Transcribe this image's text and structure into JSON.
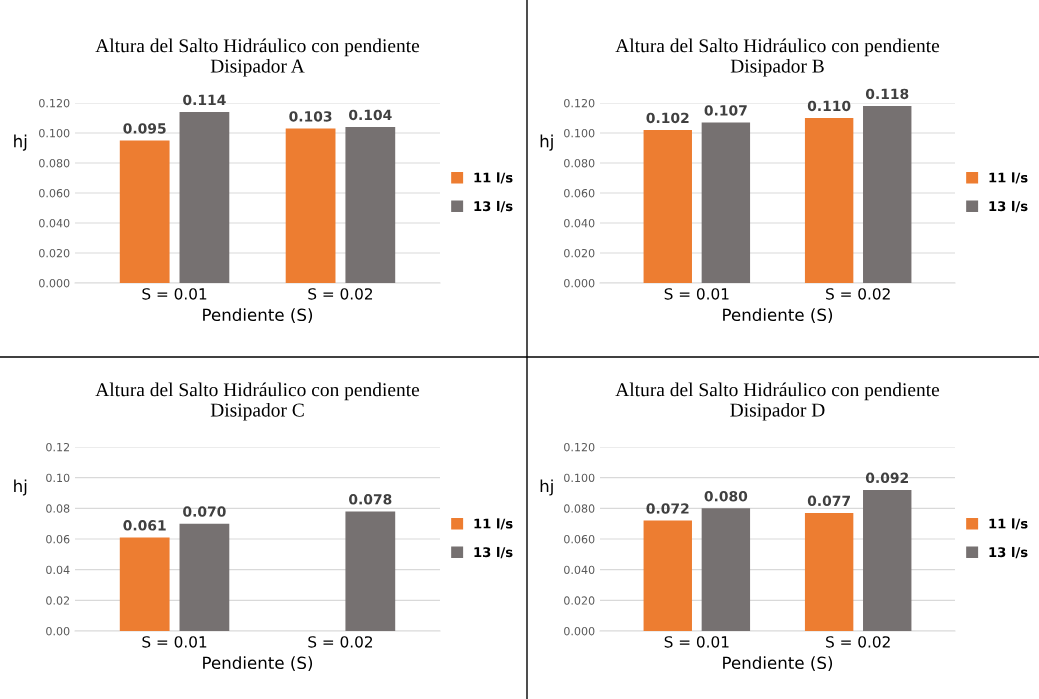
{
  "chart_data": [
    {
      "type": "bar",
      "title": "Altura del Salto Hidráulico con pendiente\nDisipador A",
      "xlabel": "Pendiente (S)",
      "ylabel": "hj",
      "categories": [
        "S = 0.01",
        "S = 0.02"
      ],
      "ylim": [
        0,
        0.12
      ],
      "yticks": [
        {
          "value": 0,
          "label": "0.000"
        },
        {
          "value": 0.02,
          "label": "0.020"
        },
        {
          "value": 0.04,
          "label": "0.040"
        },
        {
          "value": 0.06,
          "label": "0.060"
        },
        {
          "value": 0.08,
          "label": "0.080"
        },
        {
          "value": 0.1,
          "label": "0.100"
        },
        {
          "value": 0.12,
          "label": "0.120"
        }
      ],
      "grid": "y",
      "legend": "right",
      "series": [
        {
          "name": "11 l/s",
          "color": "#ed7d31",
          "values": [
            0.095,
            0.103
          ],
          "value_labels": [
            "0.095",
            "0.103"
          ]
        },
        {
          "name": "13 l/s",
          "color": "#767171",
          "values": [
            0.114,
            0.104
          ],
          "value_labels": [
            "0.114",
            "0.104"
          ]
        }
      ]
    },
    {
      "type": "bar",
      "title": "Altura del Salto Hidráulico con pendiente\nDisipador B",
      "xlabel": "Pendiente (S)",
      "ylabel": "hj",
      "categories": [
        "S = 0.01",
        "S = 0.02"
      ],
      "ylim": [
        0,
        0.12
      ],
      "yticks": [
        {
          "value": 0,
          "label": "0.000"
        },
        {
          "value": 0.02,
          "label": "0.020"
        },
        {
          "value": 0.04,
          "label": "0.040"
        },
        {
          "value": 0.06,
          "label": "0.060"
        },
        {
          "value": 0.08,
          "label": "0.080"
        },
        {
          "value": 0.1,
          "label": "0.100"
        },
        {
          "value": 0.12,
          "label": "0.120"
        }
      ],
      "grid": "y",
      "legend": "right",
      "series": [
        {
          "name": "11 l/s",
          "color": "#ed7d31",
          "values": [
            0.102,
            0.11
          ],
          "value_labels": [
            "0.102",
            "0.110"
          ]
        },
        {
          "name": "13 l/s",
          "color": "#767171",
          "values": [
            0.107,
            0.118
          ],
          "value_labels": [
            "0.107",
            "0.118"
          ]
        }
      ]
    },
    {
      "type": "bar",
      "title": "Altura del Salto Hidráulico con pendiente\nDisipador C",
      "xlabel": "Pendiente (S)",
      "ylabel": "hj",
      "categories": [
        "S = 0.01",
        "S = 0.02"
      ],
      "ylim": [
        0,
        0.12
      ],
      "yticks": [
        {
          "value": 0,
          "label": "0.00"
        },
        {
          "value": 0.02,
          "label": "0.02"
        },
        {
          "value": 0.04,
          "label": "0.04"
        },
        {
          "value": 0.06,
          "label": "0.06"
        },
        {
          "value": 0.08,
          "label": "0.08"
        },
        {
          "value": 0.1,
          "label": "0.10"
        },
        {
          "value": 0.12,
          "label": "0.12"
        }
      ],
      "grid": "y",
      "legend": "right",
      "series": [
        {
          "name": "11 l/s",
          "color": "#ed7d31",
          "values": [
            0.061,
            null
          ],
          "value_labels": [
            "0.061",
            null
          ]
        },
        {
          "name": "13 l/s",
          "color": "#767171",
          "values": [
            0.07,
            0.078
          ],
          "value_labels": [
            "0.070",
            "0.078"
          ]
        }
      ]
    },
    {
      "type": "bar",
      "title": "Altura del Salto Hidráulico con pendiente\nDisipador D",
      "xlabel": "Pendiente (S)",
      "ylabel": "hj",
      "categories": [
        "S = 0.01",
        "S = 0.02"
      ],
      "ylim": [
        0,
        0.12
      ],
      "yticks": [
        {
          "value": 0,
          "label": "0.000"
        },
        {
          "value": 0.02,
          "label": "0.020"
        },
        {
          "value": 0.04,
          "label": "0.040"
        },
        {
          "value": 0.06,
          "label": "0.060"
        },
        {
          "value": 0.08,
          "label": "0.080"
        },
        {
          "value": 0.1,
          "label": "0.100"
        },
        {
          "value": 0.12,
          "label": "0.120"
        }
      ],
      "grid": "y",
      "legend": "right",
      "series": [
        {
          "name": "11 l/s",
          "color": "#ed7d31",
          "values": [
            0.072,
            0.077
          ],
          "value_labels": [
            "0.072",
            "0.077"
          ]
        },
        {
          "name": "13 l/s",
          "color": "#767171",
          "values": [
            0.08,
            0.092
          ],
          "value_labels": [
            "0.080",
            "0.092"
          ]
        }
      ]
    }
  ]
}
